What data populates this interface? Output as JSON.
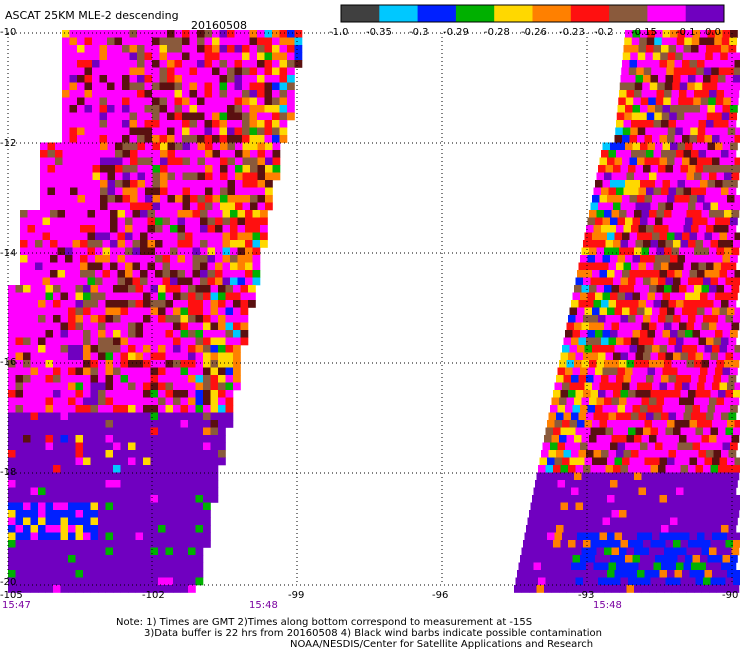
{
  "header": {
    "title": "ASCAT 25KM MLE-2 descending",
    "date": "20160508"
  },
  "colorbar": {
    "colors": [
      "#404040",
      "#00c8ff",
      "#0020ff",
      "#00b000",
      "#ffd800",
      "#ff8000",
      "#ff1010",
      "#8a5a3c",
      "#ff00ff",
      "#7000c0"
    ],
    "labels": [
      "-1.0",
      "-0.35",
      "-0.3",
      "-0.29",
      "-0.28",
      "-0.26",
      "-0.23",
      "-0.2",
      "-0.15",
      "-0.1",
      "0.0"
    ]
  },
  "axes": {
    "lat_labels": [
      "-10",
      "-12",
      "-14",
      "-16",
      "-18",
      "-20"
    ],
    "lon_labels": [
      "-105",
      "-102",
      "-99",
      "-96",
      "-93",
      "-90"
    ]
  },
  "times": [
    "15:47",
    "15:48",
    "15:48"
  ],
  "notes": [
    "Note: 1) Times are GMT 2)Times along bottom correspond to measurement at -15S",
    "3)Data buffer is 22 hrs from 20160508 4) Black wind barbs indicate possible contamination",
    "NOAA/NESDIS/Center for Satellite Applications and Research"
  ]
}
